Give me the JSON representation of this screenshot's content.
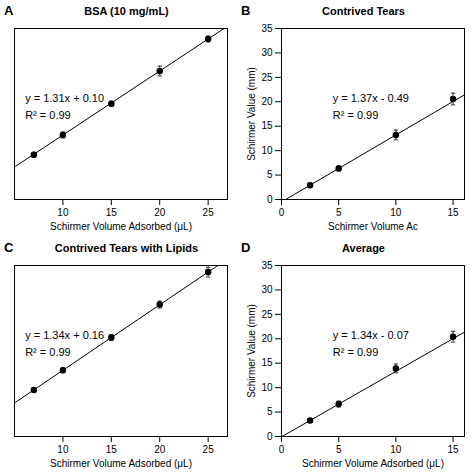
{
  "chart_data": [
    {
      "type": "scatter",
      "panel_label": "A",
      "title": "BSA (10 mg/mL)",
      "x": [
        7,
        10,
        15,
        20,
        25
      ],
      "values": [
        9.17,
        13.21,
        19.62,
        26.3,
        32.85
      ],
      "errors": [
        0.5,
        0.6,
        0.5,
        1.0,
        0.6
      ],
      "fit_line": {
        "x": [
          5,
          27
        ],
        "y": [
          6.65,
          35.47
        ]
      },
      "annotations": [
        "y = 1.31x + 0.10",
        "R² = 0.99"
      ],
      "xlabel": "Schirmer Volume Adsorbed (μL)",
      "xlim": [
        5,
        27
      ],
      "ylim": [
        0,
        35
      ],
      "xticks": [
        10,
        15,
        20,
        25
      ],
      "yticks": [],
      "tick_labels": "x",
      "color": "#000000"
    },
    {
      "type": "scatter",
      "panel_label": "B",
      "title": "Contrived Tears",
      "x": [
        2.5,
        5,
        10,
        15
      ],
      "values": [
        2.94,
        6.36,
        13.21,
        20.56
      ],
      "errors": [
        0.3,
        0.5,
        1.0,
        1.2
      ],
      "fit_line": {
        "x": [
          0,
          16
        ],
        "y": [
          -0.49,
          21.43
        ]
      },
      "annotations": [
        "y = 1.37x - 0.49",
        "R² = 0.99"
      ],
      "xlabel": "Schirmer Volume Ac",
      "ylabel": "Schirmer Value (mm)",
      "xlim": [
        0,
        16
      ],
      "ylim": [
        0,
        35
      ],
      "xticks": [
        0,
        5,
        10,
        15
      ],
      "yticks": [
        0,
        5,
        10,
        15,
        20,
        25,
        30,
        35
      ],
      "color": "#000000"
    },
    {
      "type": "scatter",
      "panel_label": "C",
      "title": "Contrived Tears with Lipids",
      "x": [
        7,
        10,
        15,
        20,
        25
      ],
      "values": [
        9.54,
        13.55,
        20.26,
        27.0,
        33.65
      ],
      "errors": [
        0.4,
        0.5,
        0.6,
        0.7,
        1.0
      ],
      "fit_line": {
        "x": [
          5,
          27
        ],
        "y": [
          6.86,
          36.34
        ]
      },
      "annotations": [
        "y = 1.34x + 0.16",
        "R² = 0.99"
      ],
      "xlabel": "Schirmer Volume Adsorbed (μL)",
      "xlim": [
        5,
        27
      ],
      "ylim": [
        0,
        35
      ],
      "xticks": [
        10,
        15,
        20,
        25
      ],
      "yticks": [],
      "tick_labels": "x",
      "color": "#000000"
    },
    {
      "type": "scatter",
      "panel_label": "D",
      "title": "Average",
      "x": [
        2.5,
        5,
        10,
        15
      ],
      "values": [
        3.28,
        6.63,
        13.93,
        20.43
      ],
      "errors": [
        0.3,
        0.6,
        0.9,
        1.1
      ],
      "fit_line": {
        "x": [
          0,
          16
        ],
        "y": [
          -0.07,
          21.37
        ]
      },
      "annotations": [
        "y = 1.34x - 0.07",
        "R² = 0.99"
      ],
      "xlabel": "Schirmer Volume Adsorbed (μL)",
      "ylabel": "Schirmer Value (mm)",
      "xlim": [
        0,
        16
      ],
      "ylim": [
        0,
        35
      ],
      "xticks": [
        0,
        5,
        10,
        15
      ],
      "yticks": [
        0,
        5,
        10,
        15,
        20,
        25,
        30,
        35
      ],
      "color": "#000000"
    }
  ]
}
